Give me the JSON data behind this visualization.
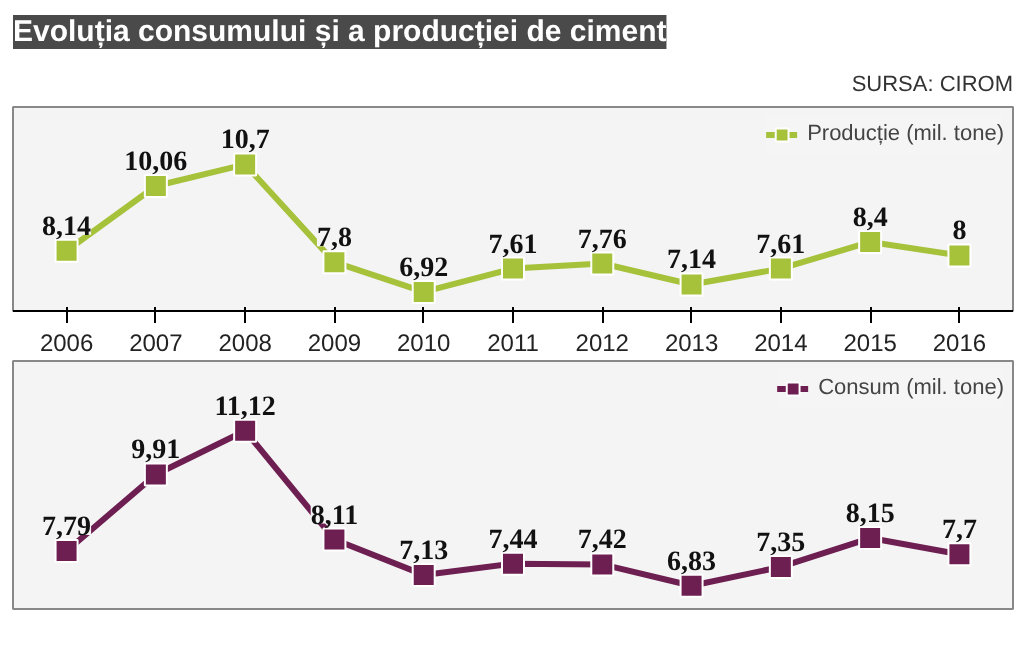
{
  "chart_data": [
    {
      "type": "line",
      "title": "Evoluția consumului și a producției de ciment",
      "annotations": [
        "SURSA: CIROM"
      ],
      "categories": [
        "2006",
        "2007",
        "2008",
        "2009",
        "2010",
        "2011",
        "2012",
        "2013",
        "2014",
        "2015",
        "2016"
      ],
      "series": [
        {
          "name": "Producție (mil. tone)",
          "color": "#a6c13a",
          "values": [
            8.14,
            10.06,
            10.7,
            7.8,
            6.92,
            7.61,
            7.76,
            7.14,
            7.61,
            8.4,
            8
          ],
          "value_labels": [
            "8,14",
            "10,06",
            "10,7",
            "7,8",
            "6,92",
            "7,61",
            "7,76",
            "7,14",
            "7,61",
            "8,4",
            "8"
          ]
        }
      ],
      "marker": "square",
      "legend": "top right"
    },
    {
      "type": "line",
      "tick_labels": false,
      "categories": [
        "2006",
        "2007",
        "2008",
        "2009",
        "2010",
        "2011",
        "2012",
        "2013",
        "2014",
        "2015",
        "2016"
      ],
      "series": [
        {
          "name": "Consum (mil. tone)",
          "color": "#6e1f52",
          "values": [
            7.79,
            9.91,
            11.12,
            8.11,
            7.13,
            7.44,
            7.42,
            6.83,
            7.35,
            8.15,
            7.7
          ],
          "value_labels": [
            "7,79",
            "9,91",
            "11,12",
            "8,11",
            "7,13",
            "7,44",
            "7,42",
            "6,83",
            "7,35",
            "8,15",
            "7,7"
          ]
        }
      ],
      "marker": "square",
      "legend": "top right"
    }
  ]
}
